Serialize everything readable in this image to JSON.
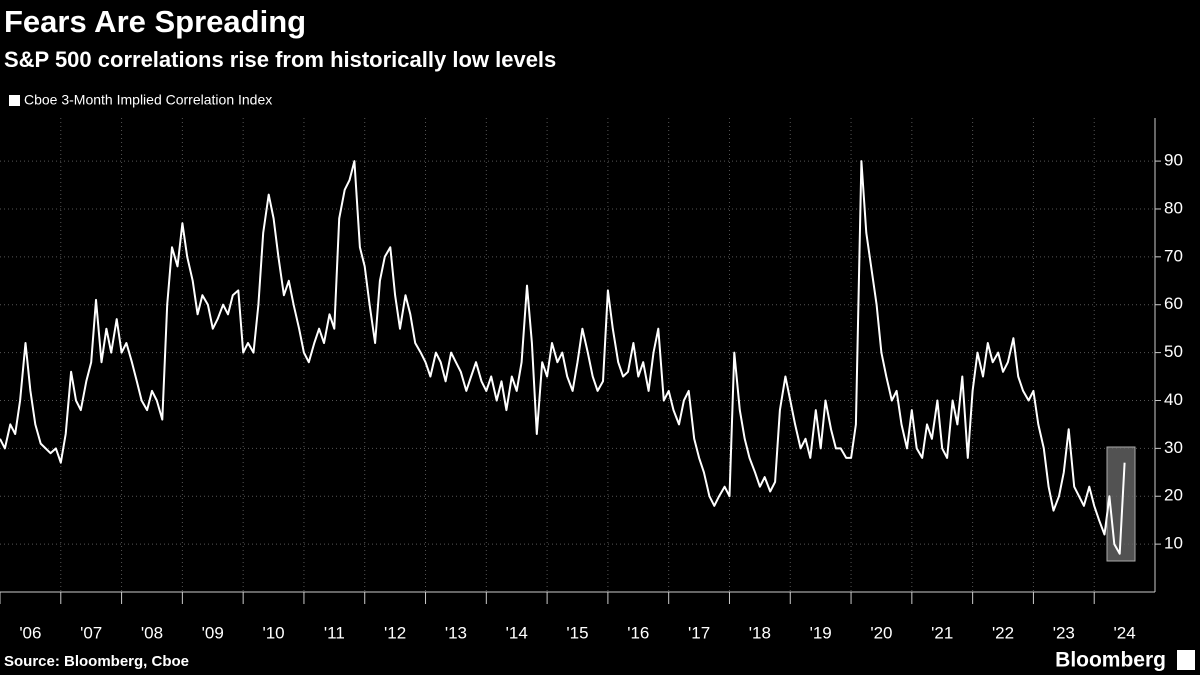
{
  "chart_data": {
    "type": "line",
    "title": "Fears Are Spreading",
    "subtitle": "S&P 500 correlations rise from historically low levels",
    "source": "Source: Bloomberg, Cboe",
    "brand": "Bloomberg",
    "xlim": [
      2006,
      2025
    ],
    "ylim": [
      0,
      99
    ],
    "xticks": [
      {
        "value": 2006,
        "label": "'06"
      },
      {
        "value": 2007,
        "label": "'07"
      },
      {
        "value": 2008,
        "label": "'08"
      },
      {
        "value": 2009,
        "label": "'09"
      },
      {
        "value": 2010,
        "label": "'10"
      },
      {
        "value": 2011,
        "label": "'11"
      },
      {
        "value": 2012,
        "label": "'12"
      },
      {
        "value": 2013,
        "label": "'13"
      },
      {
        "value": 2014,
        "label": "'14"
      },
      {
        "value": 2015,
        "label": "'15"
      },
      {
        "value": 2016,
        "label": "'16"
      },
      {
        "value": 2017,
        "label": "'17"
      },
      {
        "value": 2018,
        "label": "'18"
      },
      {
        "value": 2019,
        "label": "'19"
      },
      {
        "value": 2020,
        "label": "'20"
      },
      {
        "value": 2021,
        "label": "'21"
      },
      {
        "value": 2022,
        "label": "'22"
      },
      {
        "value": 2023,
        "label": "'23"
      },
      {
        "value": 2024,
        "label": "'24"
      }
    ],
    "yticks": [
      10,
      20,
      30,
      40,
      50,
      60,
      70,
      80,
      90
    ],
    "grid": true,
    "x": [
      2006.0,
      2006.08,
      2006.17,
      2006.25,
      2006.33,
      2006.42,
      2006.5,
      2006.58,
      2006.67,
      2006.75,
      2006.83,
      2006.92,
      2007.0,
      2007.08,
      2007.17,
      2007.25,
      2007.33,
      2007.42,
      2007.5,
      2007.58,
      2007.67,
      2007.75,
      2007.83,
      2007.92,
      2008.0,
      2008.08,
      2008.17,
      2008.25,
      2008.33,
      2008.42,
      2008.5,
      2008.58,
      2008.67,
      2008.75,
      2008.83,
      2008.92,
      2009.0,
      2009.08,
      2009.17,
      2009.25,
      2009.33,
      2009.42,
      2009.5,
      2009.58,
      2009.67,
      2009.75,
      2009.83,
      2009.92,
      2010.0,
      2010.08,
      2010.17,
      2010.25,
      2010.33,
      2010.42,
      2010.5,
      2010.58,
      2010.67,
      2010.75,
      2010.83,
      2010.92,
      2011.0,
      2011.08,
      2011.17,
      2011.25,
      2011.33,
      2011.42,
      2011.5,
      2011.58,
      2011.67,
      2011.75,
      2011.83,
      2011.92,
      2012.0,
      2012.08,
      2012.17,
      2012.25,
      2012.33,
      2012.42,
      2012.5,
      2012.58,
      2012.67,
      2012.75,
      2012.83,
      2012.92,
      2013.0,
      2013.08,
      2013.17,
      2013.25,
      2013.33,
      2013.42,
      2013.5,
      2013.58,
      2013.67,
      2013.75,
      2013.83,
      2013.92,
      2014.0,
      2014.08,
      2014.17,
      2014.25,
      2014.33,
      2014.42,
      2014.5,
      2014.58,
      2014.67,
      2014.75,
      2014.83,
      2014.92,
      2015.0,
      2015.08,
      2015.17,
      2015.25,
      2015.33,
      2015.42,
      2015.5,
      2015.58,
      2015.67,
      2015.75,
      2015.83,
      2015.92,
      2016.0,
      2016.08,
      2016.17,
      2016.25,
      2016.33,
      2016.42,
      2016.5,
      2016.58,
      2016.67,
      2016.75,
      2016.83,
      2016.92,
      2017.0,
      2017.08,
      2017.17,
      2017.25,
      2017.33,
      2017.42,
      2017.5,
      2017.58,
      2017.67,
      2017.75,
      2017.83,
      2017.92,
      2018.0,
      2018.08,
      2018.17,
      2018.25,
      2018.33,
      2018.42,
      2018.5,
      2018.58,
      2018.67,
      2018.75,
      2018.83,
      2018.92,
      2019.0,
      2019.08,
      2019.17,
      2019.25,
      2019.33,
      2019.42,
      2019.5,
      2019.58,
      2019.67,
      2019.75,
      2019.83,
      2019.92,
      2020.0,
      2020.08,
      2020.17,
      2020.25,
      2020.33,
      2020.42,
      2020.5,
      2020.58,
      2020.67,
      2020.75,
      2020.83,
      2020.92,
      2021.0,
      2021.08,
      2021.17,
      2021.25,
      2021.33,
      2021.42,
      2021.5,
      2021.58,
      2021.67,
      2021.75,
      2021.83,
      2021.92,
      2022.0,
      2022.08,
      2022.17,
      2022.25,
      2022.33,
      2022.42,
      2022.5,
      2022.58,
      2022.67,
      2022.75,
      2022.83,
      2022.92,
      2023.0,
      2023.08,
      2023.17,
      2023.25,
      2023.33,
      2023.42,
      2023.5,
      2023.58,
      2023.67,
      2023.75,
      2023.83,
      2023.92,
      2024.0,
      2024.08,
      2024.17,
      2024.25,
      2024.33,
      2024.42,
      2024.5
    ],
    "series": [
      {
        "name": "Cboe 3-Month Implied Correlation Index",
        "color": "#ffffff",
        "values": [
          32,
          30,
          35,
          33,
          40,
          52,
          42,
          35,
          31,
          30,
          29,
          30,
          27,
          33,
          46,
          40,
          38,
          44,
          48,
          61,
          48,
          55,
          50,
          57,
          50,
          52,
          48,
          44,
          40,
          38,
          42,
          40,
          36,
          60,
          72,
          68,
          77,
          70,
          65,
          58,
          62,
          60,
          55,
          57,
          60,
          58,
          62,
          63,
          50,
          52,
          50,
          60,
          75,
          83,
          78,
          70,
          62,
          65,
          60,
          55,
          50,
          48,
          52,
          55,
          52,
          58,
          55,
          78,
          84,
          86,
          90,
          72,
          68,
          60,
          52,
          65,
          70,
          72,
          62,
          55,
          62,
          58,
          52,
          50,
          48,
          45,
          50,
          48,
          44,
          50,
          48,
          46,
          42,
          45,
          48,
          44,
          42,
          45,
          40,
          44,
          38,
          45,
          42,
          48,
          64,
          52,
          33,
          48,
          45,
          52,
          48,
          50,
          45,
          42,
          48,
          55,
          50,
          45,
          42,
          44,
          63,
          55,
          48,
          45,
          46,
          52,
          45,
          48,
          42,
          50,
          55,
          40,
          42,
          38,
          35,
          40,
          42,
          32,
          28,
          25,
          20,
          18,
          20,
          22,
          20,
          50,
          38,
          32,
          28,
          25,
          22,
          24,
          21,
          23,
          38,
          45,
          40,
          35,
          30,
          32,
          28,
          38,
          30,
          40,
          34,
          30,
          30,
          28,
          28,
          35,
          90,
          75,
          68,
          60,
          50,
          45,
          40,
          42,
          35,
          30,
          38,
          30,
          28,
          35,
          32,
          40,
          30,
          28,
          40,
          35,
          45,
          28,
          42,
          50,
          45,
          52,
          48,
          50,
          46,
          48,
          53,
          45,
          42,
          40,
          42,
          35,
          30,
          22,
          17,
          20,
          25,
          34,
          22,
          20,
          18,
          22,
          18,
          15,
          12,
          20,
          10,
          8,
          27
        ]
      }
    ]
  }
}
